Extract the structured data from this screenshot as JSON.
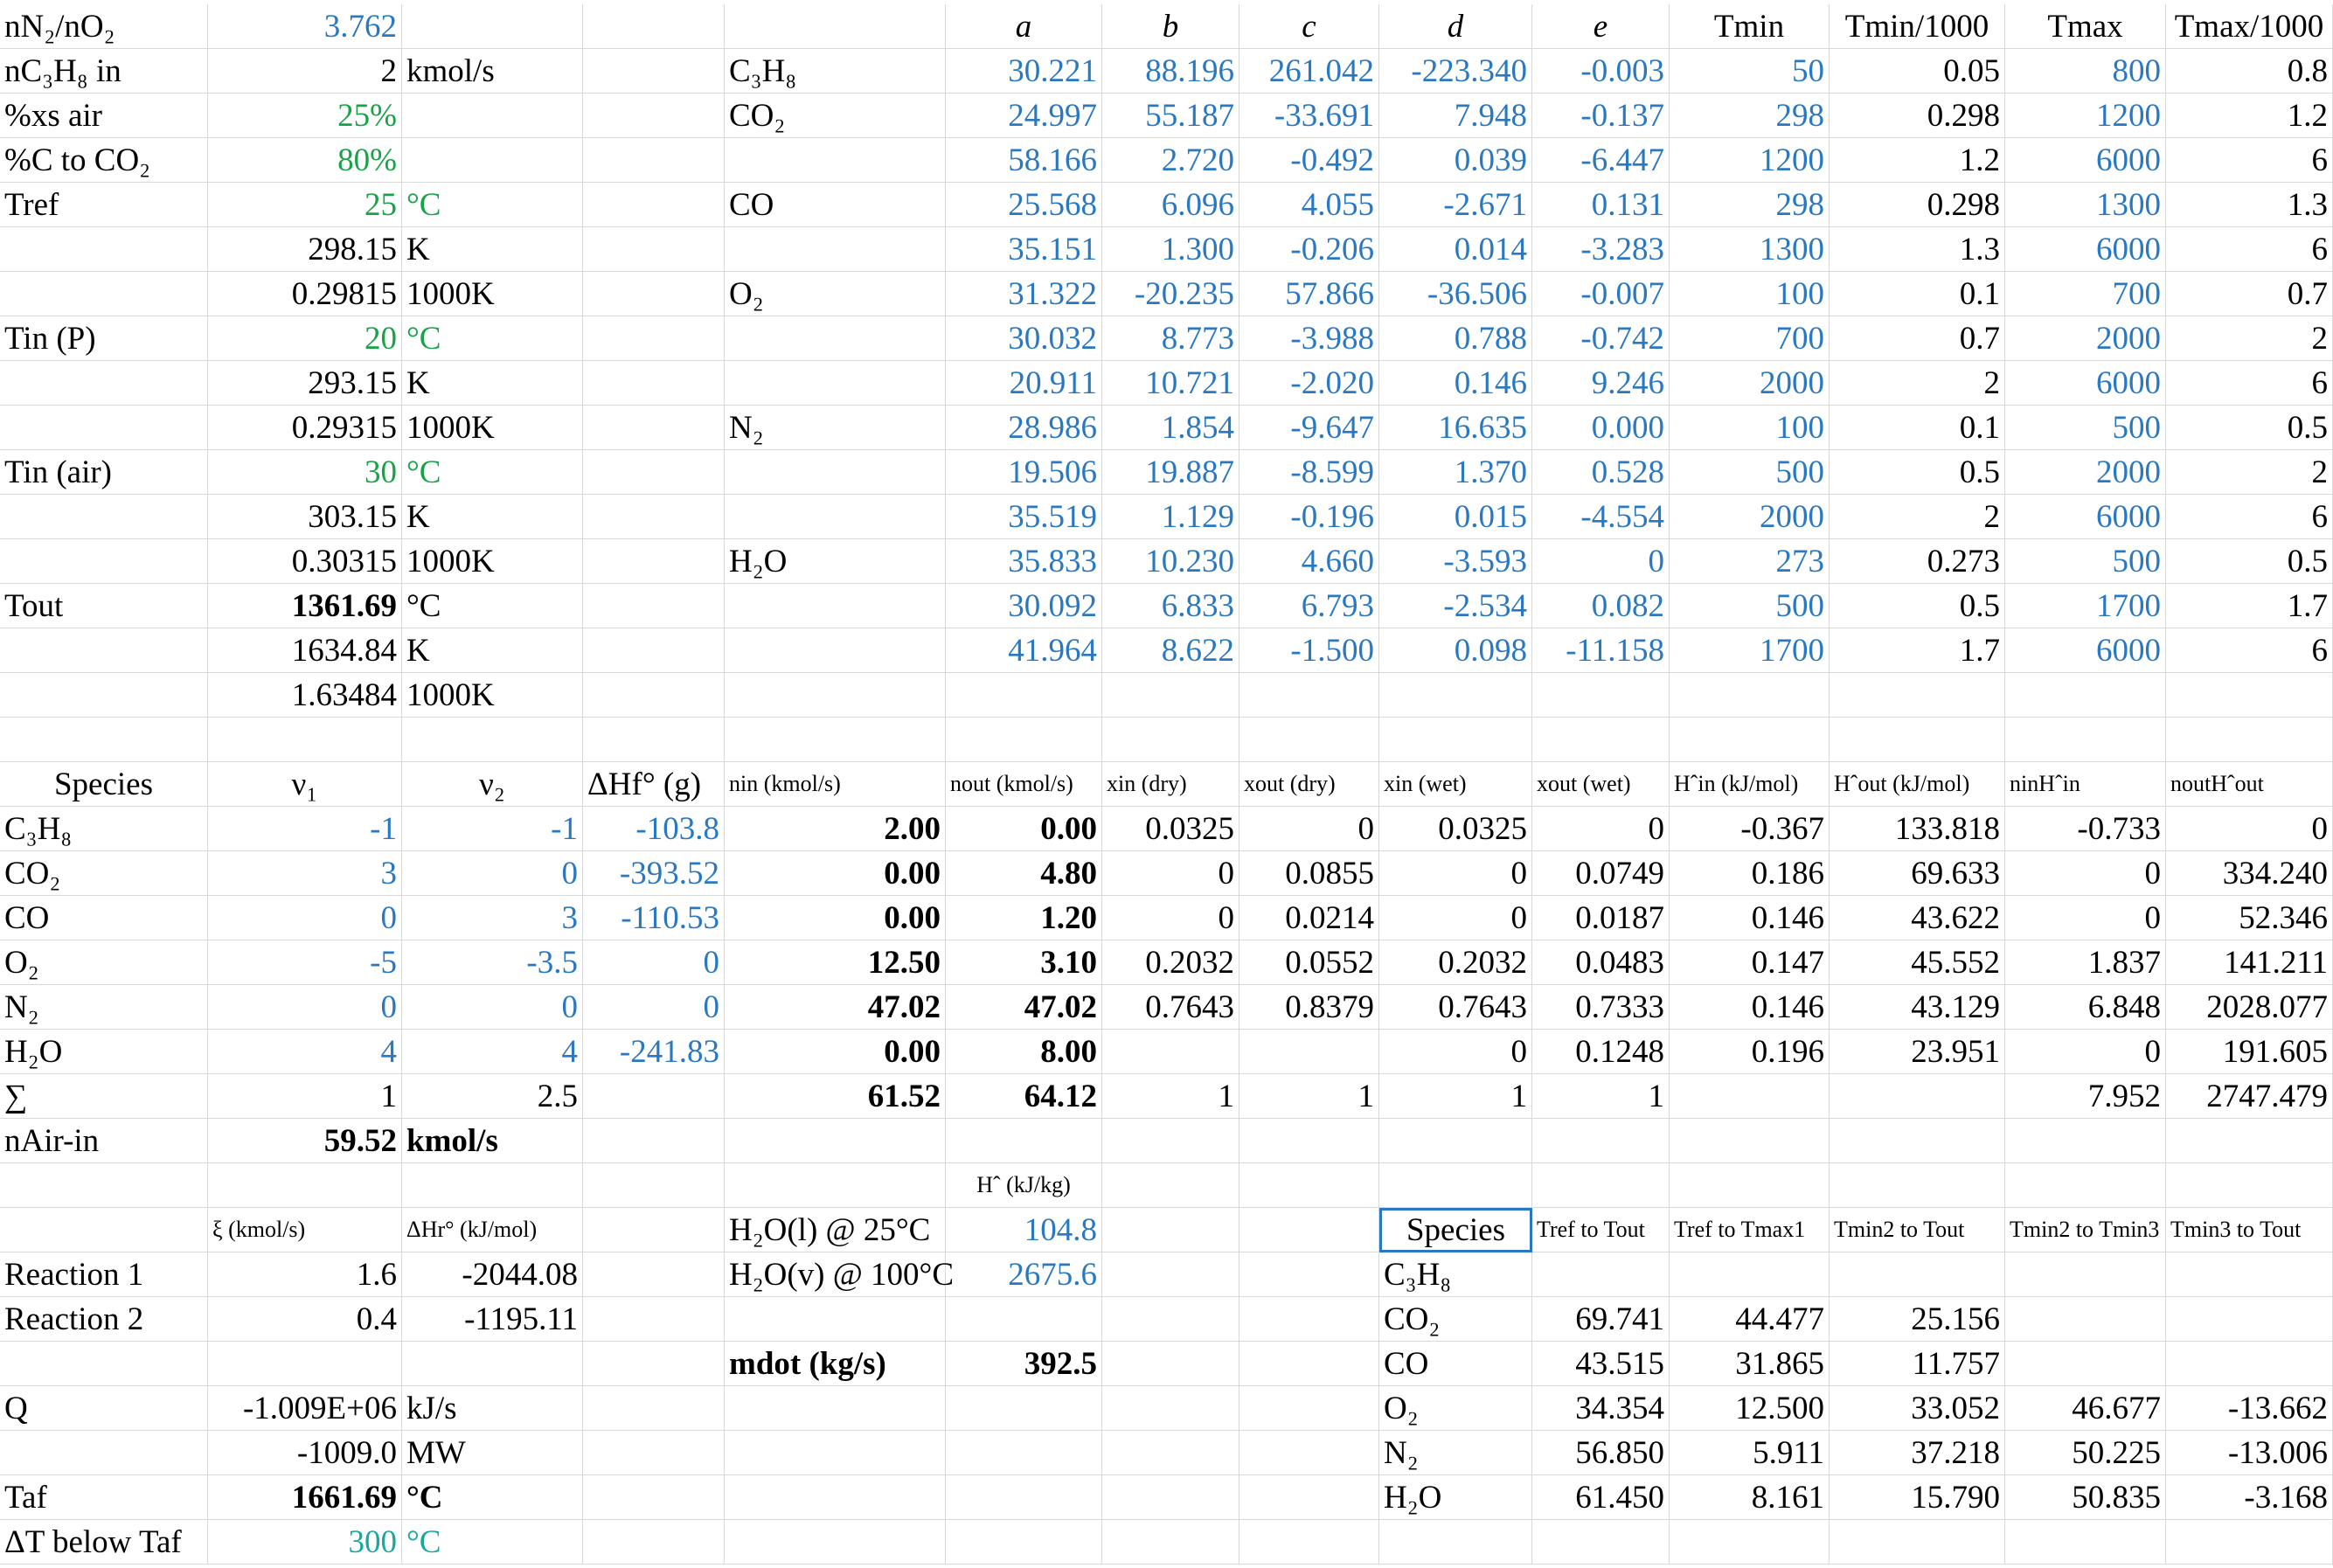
{
  "sheet": {
    "rows": [
      [
        "nN₂/nO₂",
        "3.762",
        null,
        null,
        null,
        "a",
        "b",
        "c",
        "d",
        "e",
        "Tmin",
        "Tmin/1000",
        "Tmax",
        "Tmax/1000"
      ],
      [
        "nC₃H₈ in",
        "2",
        "kmol/s",
        null,
        "C₃H₈",
        "30.221",
        "88.196",
        "261.042",
        "-223.340",
        "-0.003",
        "50",
        "0.05",
        "800",
        "0.8"
      ],
      [
        "%xs air",
        "25%",
        null,
        null,
        "CO₂",
        "24.997",
        "55.187",
        "-33.691",
        "7.948",
        "-0.137",
        "298",
        "0.298",
        "1200",
        "1.2"
      ],
      [
        "%C to CO₂",
        "80%",
        null,
        null,
        null,
        "58.166",
        "2.720",
        "-0.492",
        "0.039",
        "-6.447",
        "1200",
        "1.2",
        "6000",
        "6"
      ],
      [
        "Tref",
        "25",
        "°C",
        null,
        "CO",
        "25.568",
        "6.096",
        "4.055",
        "-2.671",
        "0.131",
        "298",
        "0.298",
        "1300",
        "1.3"
      ],
      [
        null,
        "298.15",
        "K",
        null,
        null,
        "35.151",
        "1.300",
        "-0.206",
        "0.014",
        "-3.283",
        "1300",
        "1.3",
        "6000",
        "6"
      ],
      [
        null,
        "0.29815",
        "1000K",
        null,
        "O₂",
        "31.322",
        "-20.235",
        "57.866",
        "-36.506",
        "-0.007",
        "100",
        "0.1",
        "700",
        "0.7"
      ],
      [
        "Tin (P)",
        "20",
        "°C",
        null,
        null,
        "30.032",
        "8.773",
        "-3.988",
        "0.788",
        "-0.742",
        "700",
        "0.7",
        "2000",
        "2"
      ],
      [
        null,
        "293.15",
        "K",
        null,
        null,
        "20.911",
        "10.721",
        "-2.020",
        "0.146",
        "9.246",
        "2000",
        "2",
        "6000",
        "6"
      ],
      [
        null,
        "0.29315",
        "1000K",
        null,
        "N₂",
        "28.986",
        "1.854",
        "-9.647",
        "16.635",
        "0.000",
        "100",
        "0.1",
        "500",
        "0.5"
      ],
      [
        "Tin (air)",
        "30",
        "°C",
        null,
        null,
        "19.506",
        "19.887",
        "-8.599",
        "1.370",
        "0.528",
        "500",
        "0.5",
        "2000",
        "2"
      ],
      [
        null,
        "303.15",
        "K",
        null,
        null,
        "35.519",
        "1.129",
        "-0.196",
        "0.015",
        "-4.554",
        "2000",
        "2",
        "6000",
        "6"
      ],
      [
        null,
        "0.30315",
        "1000K",
        null,
        "H₂O",
        "35.833",
        "10.230",
        "4.660",
        "-3.593",
        "0",
        "273",
        "0.273",
        "500",
        "0.5"
      ],
      [
        "Tout",
        "1361.69",
        "°C",
        null,
        null,
        "30.092",
        "6.833",
        "6.793",
        "-2.534",
        "0.082",
        "500",
        "0.5",
        "1700",
        "1.7"
      ],
      [
        null,
        "1634.84",
        "K",
        null,
        null,
        "41.964",
        "8.622",
        "-1.500",
        "0.098",
        "-11.158",
        "1700",
        "1.7",
        "6000",
        "6"
      ],
      [
        null,
        "1.63484",
        "1000K",
        null,
        null,
        null,
        null,
        null,
        null,
        null,
        null,
        null,
        null,
        null
      ],
      [
        null,
        null,
        null,
        null,
        null,
        null,
        null,
        null,
        null,
        null,
        null,
        null,
        null,
        null
      ],
      [
        "Species",
        "ν₁",
        "ν₂",
        "ΔHf° (g)",
        "nin (kmol/s)",
        "nout (kmol/s)",
        "xin (dry)",
        "xout (dry)",
        "xin (wet)",
        "xout (wet)",
        "Hˆin (kJ/mol)",
        "Hˆout (kJ/mol)",
        "ninHˆin",
        "noutHˆout"
      ],
      [
        "C₃H₈",
        "-1",
        "-1",
        "-103.8",
        "2.00",
        "0.00",
        "0.0325",
        "0",
        "0.0325",
        "0",
        "-0.367",
        "133.818",
        "-0.733",
        "0"
      ],
      [
        "CO₂",
        "3",
        "0",
        "-393.52",
        "0.00",
        "4.80",
        "0",
        "0.0855",
        "0",
        "0.0749",
        "0.186",
        "69.633",
        "0",
        "334.240"
      ],
      [
        "CO",
        "0",
        "3",
        "-110.53",
        "0.00",
        "1.20",
        "0",
        "0.0214",
        "0",
        "0.0187",
        "0.146",
        "43.622",
        "0",
        "52.346"
      ],
      [
        "O₂",
        "-5",
        "-3.5",
        "0",
        "12.50",
        "3.10",
        "0.2032",
        "0.0552",
        "0.2032",
        "0.0483",
        "0.147",
        "45.552",
        "1.837",
        "141.211"
      ],
      [
        "N₂",
        "0",
        "0",
        "0",
        "47.02",
        "47.02",
        "0.7643",
        "0.8379",
        "0.7643",
        "0.7333",
        "0.146",
        "43.129",
        "6.848",
        "2028.077"
      ],
      [
        "H₂O",
        "4",
        "4",
        "-241.83",
        "0.00",
        "8.00",
        null,
        null,
        "0",
        "0.1248",
        "0.196",
        "23.951",
        "0",
        "191.605"
      ],
      [
        "∑",
        "1",
        "2.5",
        null,
        "61.52",
        "64.12",
        "1",
        "1",
        "1",
        "1",
        null,
        null,
        "7.952",
        "2747.479"
      ],
      [
        "nAir-in",
        "59.52",
        "kmol/s",
        null,
        null,
        null,
        null,
        null,
        null,
        null,
        null,
        null,
        null,
        null
      ],
      [
        null,
        null,
        null,
        null,
        null,
        "Hˆ (kJ/kg)",
        null,
        null,
        null,
        null,
        null,
        null,
        null,
        null
      ],
      [
        null,
        "ξ (kmol/s)",
        "ΔHr° (kJ/mol)",
        null,
        "H₂O(l) @ 25°C",
        "104.8",
        null,
        null,
        "Species",
        "Tref to Tout",
        "Tref to Tmax1",
        "Tmin2 to Tout",
        "Tmin2 to Tmin3",
        "Tmin3 to Tout"
      ],
      [
        "Reaction 1",
        "1.6",
        "-2044.08",
        null,
        "H₂O(v) @ 100°C",
        "2675.6",
        null,
        null,
        "C₃H₈",
        null,
        null,
        null,
        null,
        null
      ],
      [
        "Reaction 2",
        "0.4",
        "-1195.11",
        null,
        null,
        null,
        null,
        null,
        "CO₂",
        "69.741",
        "44.477",
        "25.156",
        null,
        null
      ],
      [
        null,
        null,
        null,
        null,
        "mdot (kg/s)",
        "392.5",
        null,
        null,
        "CO",
        "43.515",
        "31.865",
        "11.757",
        null,
        null
      ],
      [
        "Q",
        "-1.009E+06",
        "kJ/s",
        null,
        null,
        null,
        null,
        null,
        "O₂",
        "34.354",
        "12.500",
        "33.052",
        "46.677",
        "-13.662"
      ],
      [
        null,
        "-1009.0",
        "MW",
        null,
        null,
        null,
        null,
        null,
        "N₂",
        "56.850",
        "5.911",
        "37.218",
        "50.225",
        "-13.006"
      ],
      [
        "Taf",
        "1661.69",
        "°C",
        null,
        null,
        null,
        null,
        null,
        "H₂O",
        "61.450",
        "8.161",
        "15.790",
        "50.835",
        "-3.168"
      ],
      [
        "ΔT below Taf",
        "300",
        "°C",
        null,
        null,
        null,
        null,
        null,
        null,
        null,
        null,
        null,
        null,
        null
      ]
    ]
  }
}
